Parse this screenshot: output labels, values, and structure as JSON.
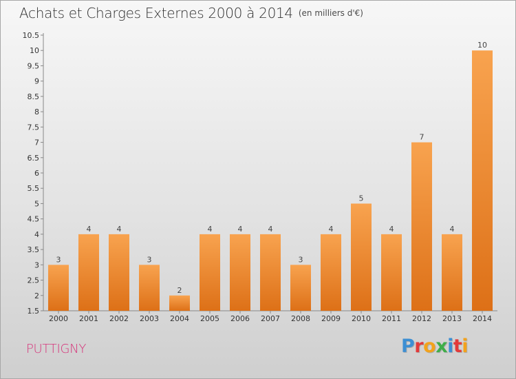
{
  "title": "Achats et Charges Externes 2000 à 2014",
  "unit_note": "(en milliers d'€)",
  "commune": "PUTTIGNY",
  "logo": "Proxiti",
  "colors": {
    "bar_light": "#f8a34f",
    "bar_dark": "#dd7017",
    "commune": "#d6347a",
    "logo": [
      "#3d8fd3",
      "#e23a3a",
      "#f2a21c",
      "#3fae49",
      "#3d8fd3",
      "#e23a3a",
      "#f2a21c"
    ]
  },
  "chart_data": {
    "type": "bar",
    "categories": [
      "2000",
      "2001",
      "2002",
      "2003",
      "2004",
      "2005",
      "2006",
      "2007",
      "2008",
      "2009",
      "2010",
      "2011",
      "2012",
      "2013",
      "2014"
    ],
    "values": [
      3,
      4,
      4,
      3,
      2,
      4,
      4,
      4,
      3,
      4,
      5,
      4,
      7,
      4,
      10
    ],
    "value_labels": [
      "3",
      "4",
      "4",
      "3",
      "2",
      "4",
      "4",
      "4",
      "3",
      "4",
      "5",
      "4",
      "7",
      "4",
      "10"
    ],
    "title": "Achats et Charges Externes 2000 à 2014",
    "xlabel": "",
    "ylabel": "",
    "ylim": [
      1.5,
      10.5
    ],
    "yticks": [
      "1.5",
      "2",
      "2.5",
      "3",
      "3.5",
      "4",
      "4.5",
      "5",
      "5.5",
      "6",
      "6.5",
      "7",
      "7.5",
      "8",
      "8.5",
      "9",
      "9.5",
      "10",
      "10.5"
    ],
    "grid": false,
    "legend": "none"
  }
}
